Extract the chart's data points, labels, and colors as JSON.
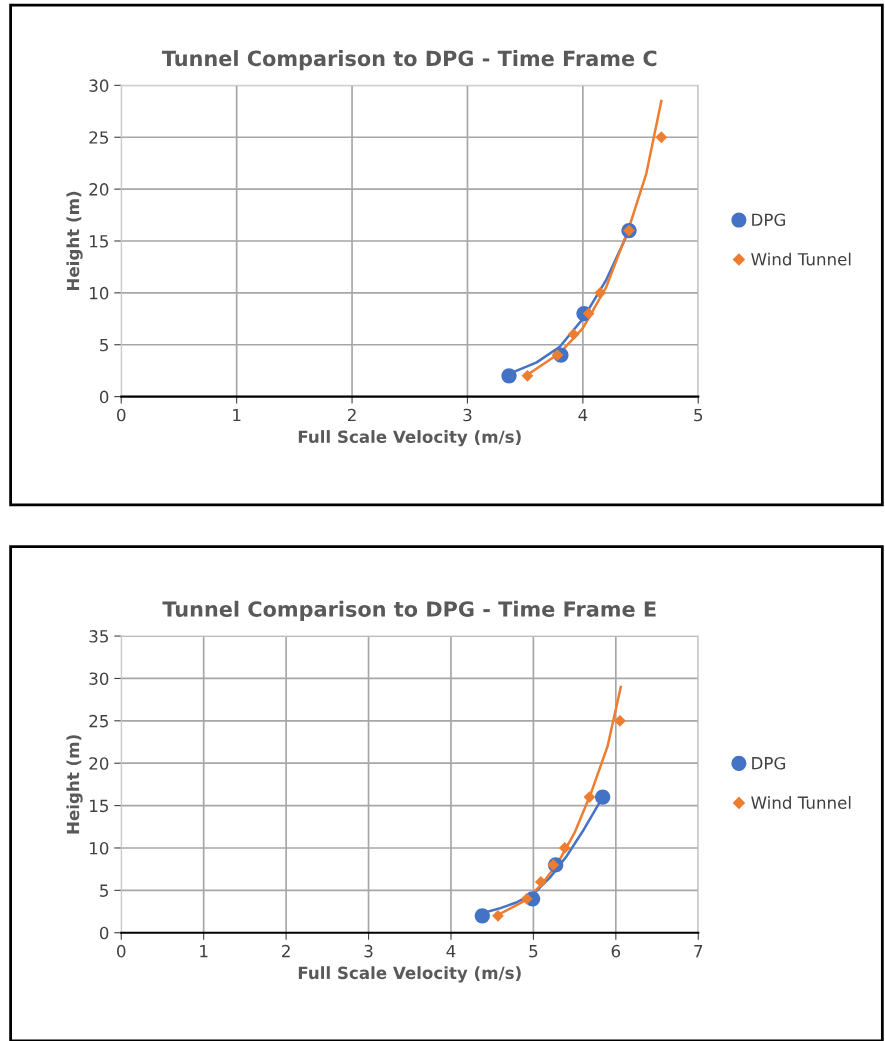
{
  "chart_data": [
    {
      "type": "scatter",
      "title": "Tunnel Comparison to DPG - Time Frame C",
      "xlabel": "Full Scale Velocity (m/s)",
      "ylabel": "Height (m)",
      "xlim": [
        0,
        5
      ],
      "xticks": [
        0,
        1,
        2,
        3,
        4,
        5
      ],
      "ylim": [
        0,
        30
      ],
      "yticks": [
        0,
        5,
        10,
        15,
        20,
        25,
        30
      ],
      "grid": true,
      "legend": "right",
      "series": [
        {
          "name": "DPG",
          "color": "#4472c4",
          "marker": "circle",
          "x": [
            3.36,
            3.81,
            4.01,
            4.4
          ],
          "values": [
            2,
            4,
            8,
            16
          ]
        },
        {
          "name": "Wind Tunnel",
          "color": "#ed7d31",
          "marker": "diamond",
          "x": [
            3.52,
            3.78,
            3.92,
            4.05,
            4.15,
            4.4,
            4.68
          ],
          "values": [
            2,
            4,
            6,
            8,
            10,
            16,
            25
          ]
        },
        {
          "type": "line",
          "color": "#4472c4",
          "marker": "none",
          "x": [
            3.36,
            3.6,
            3.8,
            4.0,
            4.2,
            4.4
          ],
          "values": [
            2.2,
            3.3,
            4.8,
            7.5,
            11.2,
            16
          ]
        },
        {
          "type": "line",
          "color": "#ed7d31",
          "marker": "none",
          "x": [
            3.52,
            3.8,
            4.0,
            4.2,
            4.4,
            4.55,
            4.68
          ],
          "values": [
            2.1,
            4.2,
            6.6,
            10.5,
            16.3,
            21.5,
            28.5
          ]
        }
      ]
    },
    {
      "type": "scatter",
      "title": "Tunnel Comparison to DPG - Time Frame E",
      "xlabel": "Full Scale Velocity (m/s)",
      "ylabel": "Height (m)",
      "xlim": [
        0,
        7
      ],
      "xticks": [
        0,
        1,
        2,
        3,
        4,
        5,
        6,
        7
      ],
      "ylim": [
        0,
        35
      ],
      "yticks": [
        0,
        5,
        10,
        15,
        20,
        25,
        30,
        35
      ],
      "grid": true,
      "legend": "right",
      "series": [
        {
          "name": "DPG",
          "color": "#4472c4",
          "marker": "circle",
          "x": [
            4.38,
            4.99,
            5.27,
            5.84
          ],
          "values": [
            2,
            4,
            8,
            16
          ]
        },
        {
          "name": "Wind Tunnel",
          "color": "#ed7d31",
          "marker": "diamond",
          "x": [
            4.57,
            4.92,
            5.09,
            5.24,
            5.38,
            5.68,
            6.05
          ],
          "values": [
            2,
            4,
            6,
            8,
            10,
            16,
            25
          ]
        },
        {
          "type": "line",
          "color": "#4472c4",
          "marker": "none",
          "x": [
            4.38,
            4.6,
            4.8,
            5.0,
            5.2,
            5.4,
            5.6,
            5.84
          ],
          "values": [
            2.3,
            2.9,
            3.6,
            4.6,
            6.5,
            9,
            12,
            16
          ]
        },
        {
          "type": "line",
          "color": "#ed7d31",
          "marker": "none",
          "x": [
            4.57,
            4.9,
            5.1,
            5.3,
            5.5,
            5.7,
            5.9,
            6.06
          ],
          "values": [
            2.1,
            3.8,
            5.7,
            8.3,
            11.8,
            16.5,
            22,
            29
          ]
        }
      ]
    }
  ]
}
